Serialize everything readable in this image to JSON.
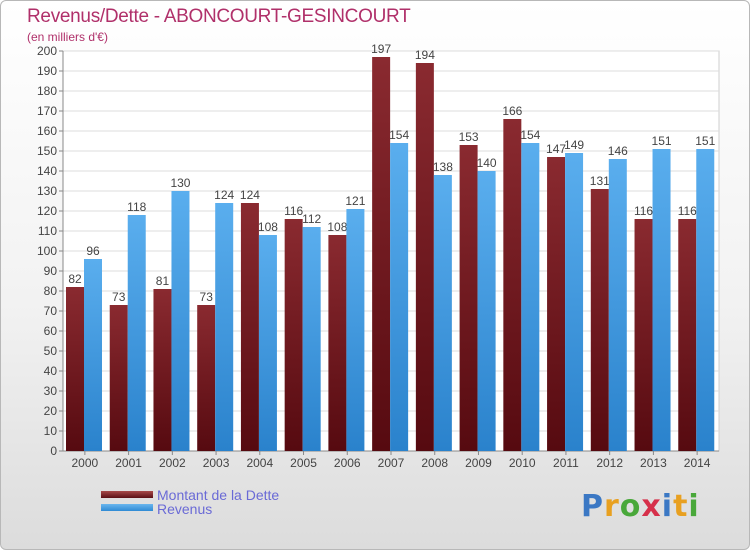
{
  "chart_data": {
    "type": "bar",
    "title": "Revenus/Dette - ABONCOURT-GESINCOURT",
    "subtitle": "(en milliers d'€)",
    "xlabel": "",
    "ylabel": "",
    "ylim": [
      0,
      200
    ],
    "ytick_step": 10,
    "grid": true,
    "legend_position": "bottom-left",
    "categories": [
      "2000",
      "2001",
      "2002",
      "2003",
      "2004",
      "2005",
      "2006",
      "2007",
      "2008",
      "2009",
      "2010",
      "2011",
      "2012",
      "2013",
      "2014"
    ],
    "series": [
      {
        "name": "Montant de la Dette",
        "color": "#7a1c22",
        "values": [
          82,
          73,
          81,
          73,
          124,
          116,
          108,
          197,
          194,
          153,
          166,
          147,
          131,
          116,
          116
        ],
        "labels": [
          "82",
          "73",
          "81",
          "73",
          "124",
          "116",
          "108",
          "197",
          "194",
          "153",
          "166",
          "147",
          "131",
          "116",
          "116"
        ]
      },
      {
        "name": "Revenus",
        "color": "#4aa3e6",
        "values": [
          96,
          118,
          130,
          124,
          108,
          112,
          121,
          154,
          138,
          140,
          154,
          149,
          146,
          151,
          151
        ],
        "labels": [
          "96",
          "118",
          "130",
          "124",
          "108",
          "112",
          "121",
          "154",
          "138",
          "140",
          "154",
          "149",
          "146",
          "151",
          "151"
        ]
      }
    ]
  },
  "logo": {
    "text": "Proxiti",
    "letters": [
      "P",
      "r",
      "o",
      "x",
      "i",
      "t",
      "i"
    ]
  }
}
